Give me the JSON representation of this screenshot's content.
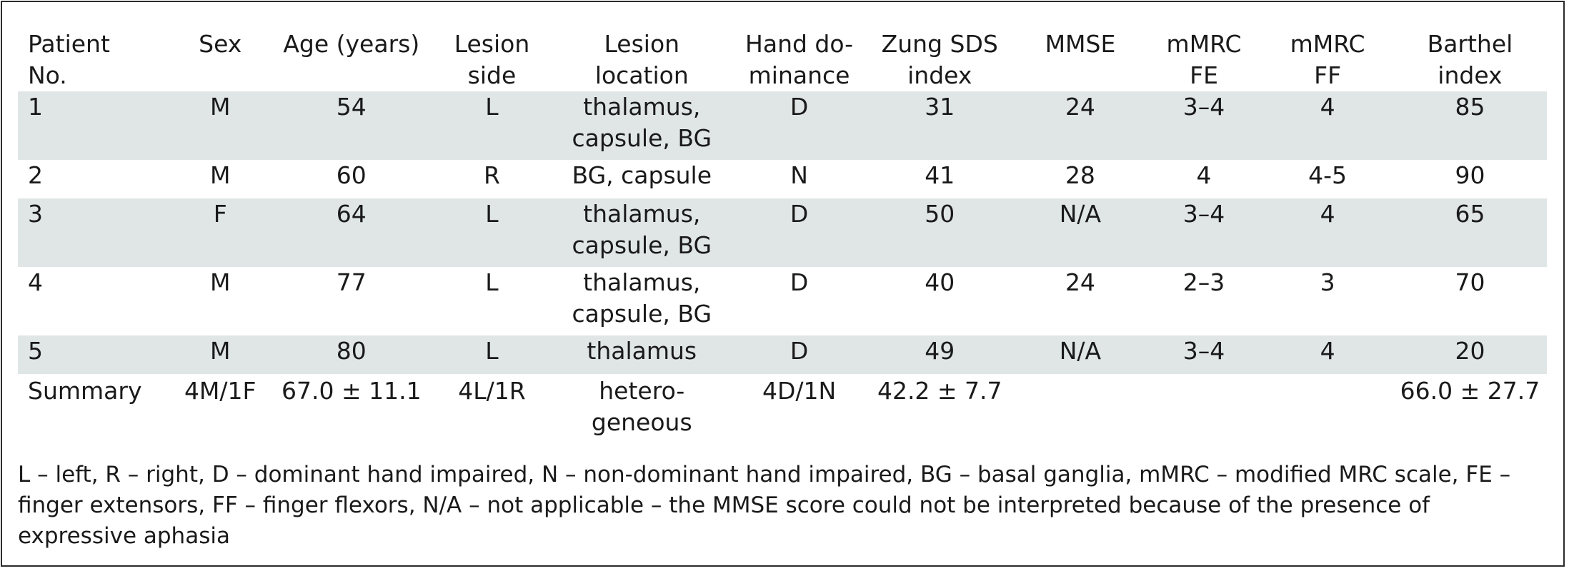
{
  "table": {
    "headers": [
      "Patient\nNo.",
      "Sex",
      "Age (years)",
      "Lesion\nside",
      "Lesion\nlocation",
      "Hand do-\nminance",
      "Zung SDS\nindex",
      "MMSE",
      "mMRC\nFE",
      "mMRC\nFF",
      "Barthel\nindex"
    ],
    "rows": [
      [
        "1",
        "M",
        "54",
        "L",
        "thalamus,\ncapsule, BG",
        "D",
        "31",
        "24",
        "3–4",
        "4",
        "85"
      ],
      [
        "2",
        "M",
        "60",
        "R",
        "BG, capsule",
        "N",
        "41",
        "28",
        "4",
        "4-5",
        "90"
      ],
      [
        "3",
        "F",
        "64",
        "L",
        "thalamus,\ncapsule, BG",
        "D",
        "50",
        "N/A",
        "3–4",
        "4",
        "65"
      ],
      [
        "4",
        "M",
        "77",
        "L",
        "thalamus,\ncapsule, BG",
        "D",
        "40",
        "24",
        "2–3",
        "3",
        "70"
      ],
      [
        "5",
        "M",
        "80",
        "L",
        "thalamus",
        "D",
        "49",
        "N/A",
        "3–4",
        "4",
        "20"
      ]
    ],
    "summary": [
      "Summary",
      "4M/1F",
      "67.0 ± 11.1",
      "4L/1R",
      "hetero-\ngeneous",
      "4D/1N",
      "42.2 ± 7.7",
      "",
      "",
      "",
      "66.0 ± 27.7"
    ]
  },
  "footnote": "L – left, R – right, D – dominant hand impaired, N – non-dominant hand impaired, BG – basal ganglia, mMRC – modified MRC scale, FE – finger extensors, FF – finger flexors, N/A – not applicable – the MMSE score could not be interpreted because of the presence of expressive aphasia"
}
